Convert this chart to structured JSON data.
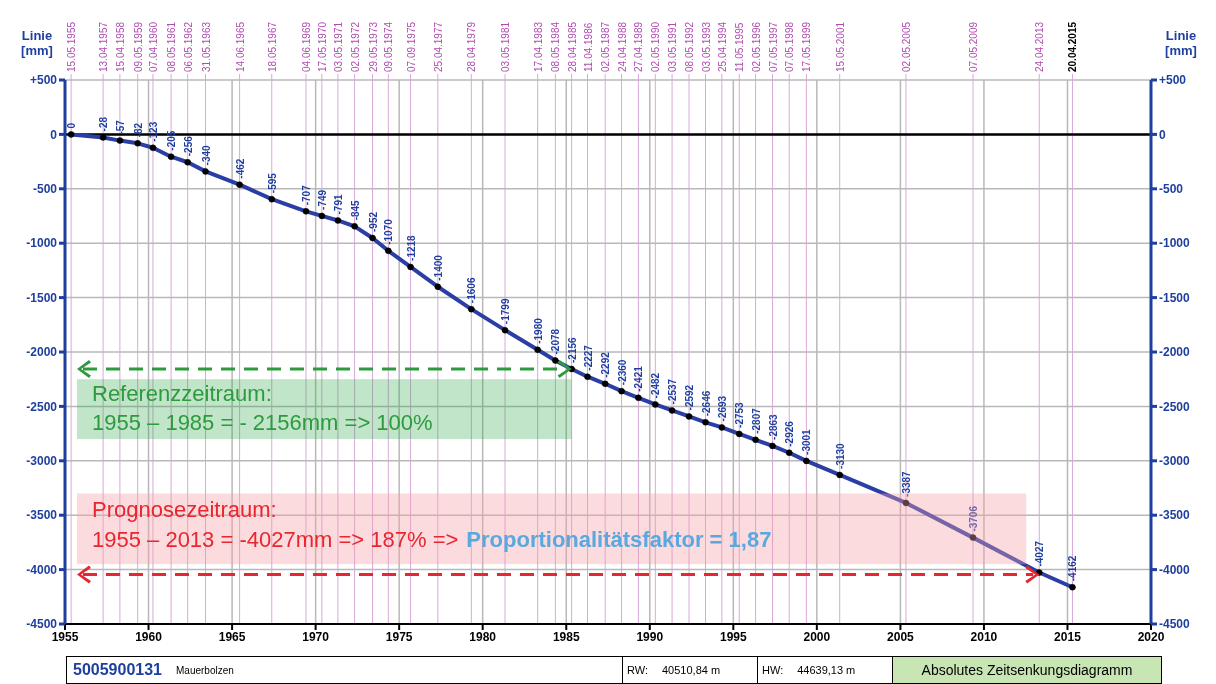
{
  "chart_data": {
    "type": "line",
    "ylabel": "Linie [mm]",
    "y2label": "Linie [mm]",
    "x": [
      "1955-05-15",
      "1957-04-13",
      "1958-04-15",
      "1959-05-09",
      "1960-04-07",
      "1961-05-08",
      "1962-05-06",
      "1963-05-31",
      "1965-06-14",
      "1967-05-18",
      "1969-06-04",
      "1970-05-17",
      "1971-05-03",
      "1972-05-02",
      "1973-05-29",
      "1974-05-09",
      "1975-09-07",
      "1977-04-25",
      "1979-04-28",
      "1981-05-03",
      "1983-04-17",
      "1984-05-08",
      "1985-04-28",
      "1986-04-11",
      "1987-05-02",
      "1988-04-24",
      "1989-04-27",
      "1990-05-02",
      "1991-05-03",
      "1992-05-08",
      "1993-05-03",
      "1994-04-25",
      "1995-05-11",
      "1996-05-02",
      "1997-05-07",
      "1998-05-07",
      "1999-05-17",
      "2001-05-15",
      "2005-05-02",
      "2009-05-07",
      "2013-04-24",
      "2015-04-20"
    ],
    "series": [
      {
        "color": "#2a3ea6",
        "values": [
          0,
          -28,
          -57,
          -82,
          -123,
          -205,
          -256,
          -340,
          -462,
          -595,
          -707,
          -749,
          -791,
          -845,
          -952,
          -1070,
          -1218,
          -1400,
          -1606,
          -1799,
          -1980,
          -2078,
          -2156,
          -2227,
          -2292,
          -2360,
          -2421,
          -2482,
          -2537,
          -2592,
          -2646,
          -2693,
          -2753,
          -2807,
          -2863,
          -2926,
          -3001,
          -3130,
          -3387,
          -3706,
          -4027,
          -4162
        ]
      }
    ],
    "data_labels": true,
    "marker": "circle",
    "grid": true,
    "xlim": [
      "1955",
      "2020"
    ],
    "xticks": [
      "1955",
      "1960",
      "1965",
      "1970",
      "1975",
      "1980",
      "1985",
      "1990",
      "1995",
      "2000",
      "2005",
      "2010",
      "2015",
      "2020"
    ],
    "x2lim": [
      "1955",
      "2020"
    ],
    "x2ticks": [
      {
        "value": "1955-05-15",
        "label": "15.05.1955"
      },
      {
        "value": "1957-04-13",
        "label": "13.04.1957"
      },
      {
        "value": "1958-04-15",
        "label": "15.04.1958"
      },
      {
        "value": "1959-05-09",
        "label": "09.05.1959"
      },
      {
        "value": "1960-04-07",
        "label": "07.04.1960"
      },
      {
        "value": "1961-05-08",
        "label": "08.05.1961"
      },
      {
        "value": "1962-05-06",
        "label": "06.05.1962"
      },
      {
        "value": "1963-05-31",
        "label": "31.05.1963"
      },
      {
        "value": "1965-06-14",
        "label": "14.06.1965"
      },
      {
        "value": "1967-05-18",
        "label": "18.05.1967"
      },
      {
        "value": "1969-06-04",
        "label": "04.06.1969"
      },
      {
        "value": "1970-05-17",
        "label": "17.05.1970"
      },
      {
        "value": "1971-05-03",
        "label": "03.05.1971"
      },
      {
        "value": "1972-05-02",
        "label": "02.05.1972"
      },
      {
        "value": "1973-05-29",
        "label": "29.05.1973"
      },
      {
        "value": "1974-05-09",
        "label": "09.05.1974"
      },
      {
        "value": "1975-09-07",
        "label": "07.09.1975"
      },
      {
        "value": "1977-04-25",
        "label": "25.04.1977"
      },
      {
        "value": "1979-04-28",
        "label": "28.04.1979"
      },
      {
        "value": "1981-05-03",
        "label": "03.05.1981"
      },
      {
        "value": "1983-04-17",
        "label": "17.04.1983"
      },
      {
        "value": "1984-05-08",
        "label": "08.05.1984"
      },
      {
        "value": "1985-04-28",
        "label": "28.04.1985"
      },
      {
        "value": "1986-04-11",
        "label": "11.04.1986"
      },
      {
        "value": "1987-05-02",
        "label": "02.05.1987"
      },
      {
        "value": "1988-04-24",
        "label": "24.04.1988"
      },
      {
        "value": "1989-04-27",
        "label": "27.04.1989"
      },
      {
        "value": "1990-05-02",
        "label": "02.05.1990"
      },
      {
        "value": "1991-05-03",
        "label": "03.05.1991"
      },
      {
        "value": "1992-05-08",
        "label": "08.05.1992"
      },
      {
        "value": "1993-05-03",
        "label": "03.05.1993"
      },
      {
        "value": "1994-04-25",
        "label": "25.04.1994"
      },
      {
        "value": "1995-05-11",
        "label": "11.05.1995"
      },
      {
        "value": "1996-05-02",
        "label": "02.05.1996"
      },
      {
        "value": "1997-05-07",
        "label": "07.05.1997"
      },
      {
        "value": "1998-05-07",
        "label": "07.05.1998"
      },
      {
        "value": "1999-05-17",
        "label": "17.05.1999"
      },
      {
        "value": "2001-05-15",
        "label": "15.05.2001"
      },
      {
        "value": "2005-05-02",
        "label": "02.05.2005"
      },
      {
        "value": "2009-05-07",
        "label": "07.05.2009"
      },
      {
        "value": "2013-04-24",
        "label": "24.04.2013"
      },
      {
        "value": "2015-04-20",
        "label": "20.04.2015"
      }
    ],
    "ylim": [
      -4500,
      500
    ],
    "yticks": [
      {
        "value": 500,
        "label": "+500"
      },
      0,
      -500,
      -1000,
      -1500,
      -2000,
      -2500,
      -3000,
      -3500,
      -4000,
      -4500
    ],
    "y2lim": [
      -4500,
      500
    ],
    "y2ticks": [
      {
        "value": 500,
        "label": "+500"
      },
      0,
      -500,
      -1000,
      -1500,
      -2000,
      -2500,
      -3000,
      -3500,
      -4000,
      -4500
    ],
    "ref_lines": [
      {
        "axis": "y",
        "value": 0,
        "color": "#000000"
      }
    ],
    "annotations": [
      "Referenzzeitraum:",
      "1955 – 1985 = - 2156mm => 100%",
      "Prognosezeitraum:",
      "1955 – 2013 = -4027mm => 187% =>",
      "Proportionalitätsfaktor = 1,87",
      "5005900131",
      "Mauerbolzen",
      "RW:",
      "40510,84 m",
      "HW:",
      "44639,13 m",
      "Absolutes Zeitsenkungsdiagramm"
    ]
  }
}
